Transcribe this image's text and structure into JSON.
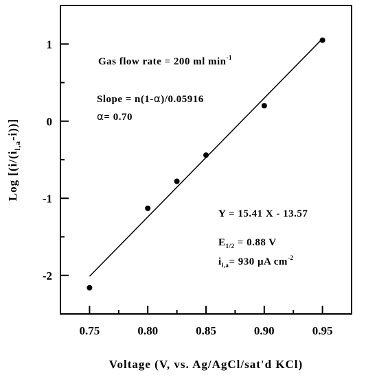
{
  "chart_data": {
    "type": "scatter",
    "xlabel": "Voltage (V, vs. Ag/AgCl/sat'd KCl)",
    "ylabel_parts": {
      "pre": "Log [(i/(i",
      "sub": "l,a",
      "post": "-i))]"
    },
    "xlim": [
      0.725,
      0.975
    ],
    "ylim": [
      -2.5,
      1.5
    ],
    "x_ticks": [
      0.75,
      0.8,
      0.85,
      0.9,
      0.95
    ],
    "x_tick_labels": [
      "0.75",
      "0.80",
      "0.85",
      "0.90",
      "0.95"
    ],
    "x_minor_ticks": [
      0.775,
      0.825,
      0.875,
      0.925
    ],
    "y_ticks": [
      -2,
      -1,
      0,
      1
    ],
    "y_tick_labels": [
      "-2",
      "-1",
      "0",
      "1"
    ],
    "y_minor_ticks": [
      -1.5,
      -0.5,
      0.5
    ],
    "points": [
      {
        "x": 0.75,
        "y": -2.16
      },
      {
        "x": 0.8,
        "y": -1.13
      },
      {
        "x": 0.825,
        "y": -0.78
      },
      {
        "x": 0.85,
        "y": -0.44
      },
      {
        "x": 0.9,
        "y": 0.2
      },
      {
        "x": 0.95,
        "y": 1.05
      }
    ],
    "fit": {
      "slope": 15.41,
      "intercept": -13.57,
      "x_range": [
        0.75,
        0.95
      ]
    },
    "annotations": {
      "gas_flow": {
        "main": "Gas flow rate = 200 ml min",
        "sup": "-1"
      },
      "slope": {
        "pre": "Slope = n(1-",
        "sym": "α",
        "post": ")/0.05916"
      },
      "alpha": {
        "sym": "α",
        "post": "= 0.70"
      },
      "equation": "Y = 15.41 X - 13.57",
      "e_half": {
        "main": "E",
        "sub": "1/2",
        "post": " = 0.88 V"
      },
      "i_la": {
        "main": "i",
        "sub": "l,a",
        "post": "= 930 μA cm",
        "sup": "-2"
      }
    }
  }
}
